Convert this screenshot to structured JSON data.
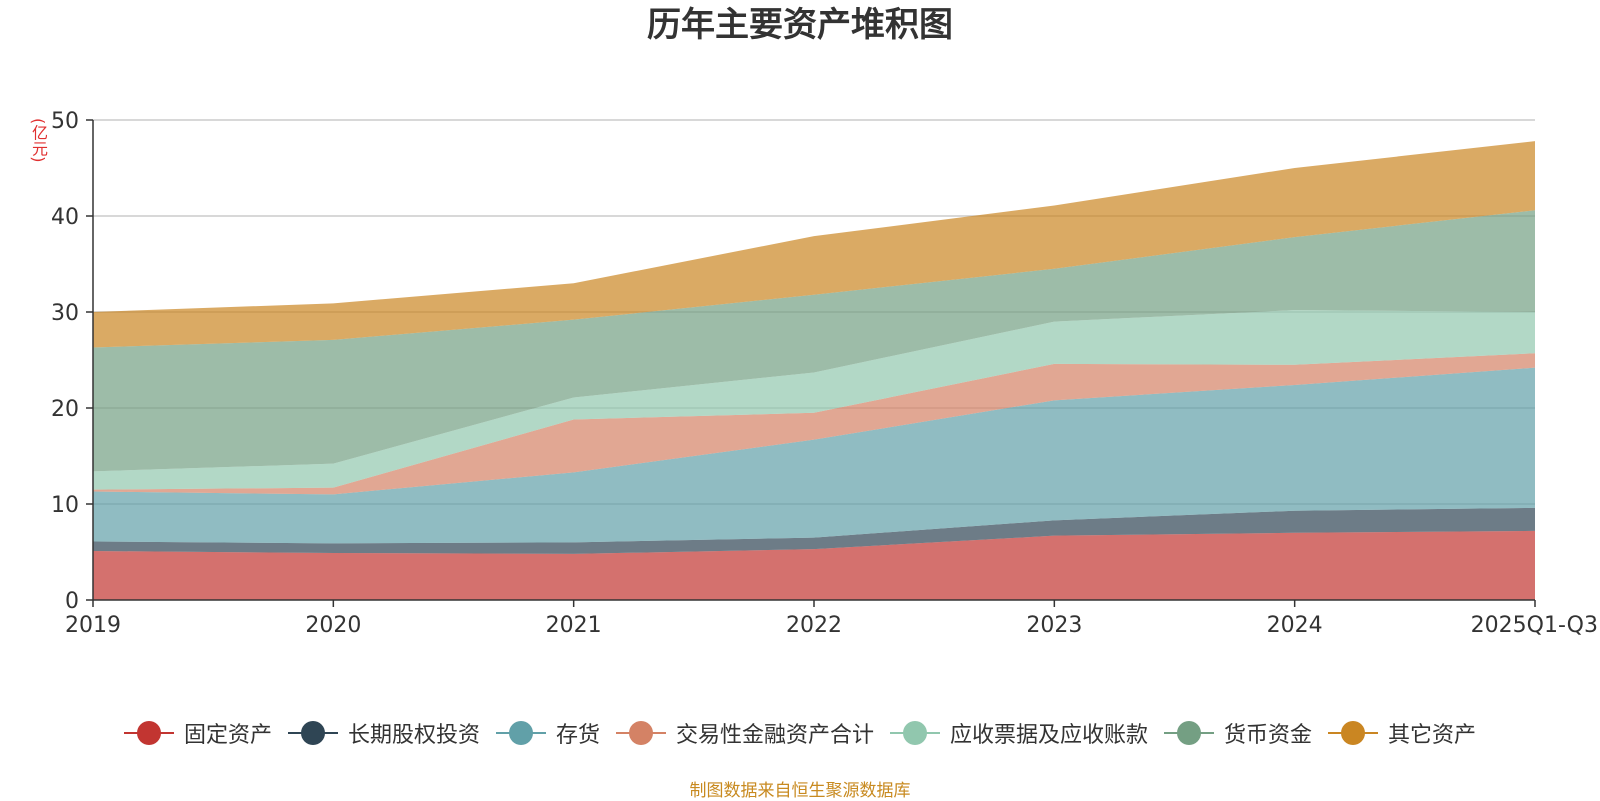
{
  "chart_data": {
    "type": "area",
    "stacked": true,
    "title": "历年主要资产堆积图",
    "unit_label": "(亿元)",
    "categories": [
      "2019",
      "2020",
      "2021",
      "2022",
      "2023",
      "2024",
      "2025Q1-Q3"
    ],
    "y_ticks": [
      "0",
      "10",
      "20",
      "30",
      "40",
      "50"
    ],
    "ylim": [
      0,
      50
    ],
    "grid": true,
    "legend_position": "bottom",
    "series": [
      {
        "name": "固定资产",
        "color": "#c23531",
        "values": [
          5.1,
          4.9,
          4.8,
          5.3,
          6.7,
          7.0,
          7.2
        ]
      },
      {
        "name": "长期股权投资",
        "color": "#2f4554",
        "values": [
          1.0,
          1.0,
          1.2,
          1.2,
          1.6,
          2.3,
          2.4
        ]
      },
      {
        "name": "存货",
        "color": "#61a0a8",
        "values": [
          5.2,
          5.1,
          7.3,
          10.2,
          12.5,
          13.1,
          14.6
        ]
      },
      {
        "name": "交易性金融资产合计",
        "color": "#d48265",
        "values": [
          0.2,
          0.7,
          5.5,
          2.8,
          3.8,
          2.1,
          1.5
        ]
      },
      {
        "name": "应收票据及应收账款",
        "color": "#91c7ae",
        "values": [
          1.9,
          2.5,
          2.3,
          4.2,
          4.4,
          5.7,
          4.3
        ]
      },
      {
        "name": "货币资金",
        "color": "#749f83",
        "values": [
          12.9,
          12.9,
          8.1,
          8.1,
          5.5,
          7.6,
          10.6
        ]
      },
      {
        "name": "其它资产",
        "color": "#ca8622",
        "values": [
          3.7,
          3.8,
          3.8,
          6.1,
          6.6,
          7.2,
          7.2
        ]
      }
    ],
    "source_note": "制图数据来自恒生聚源数据库"
  }
}
